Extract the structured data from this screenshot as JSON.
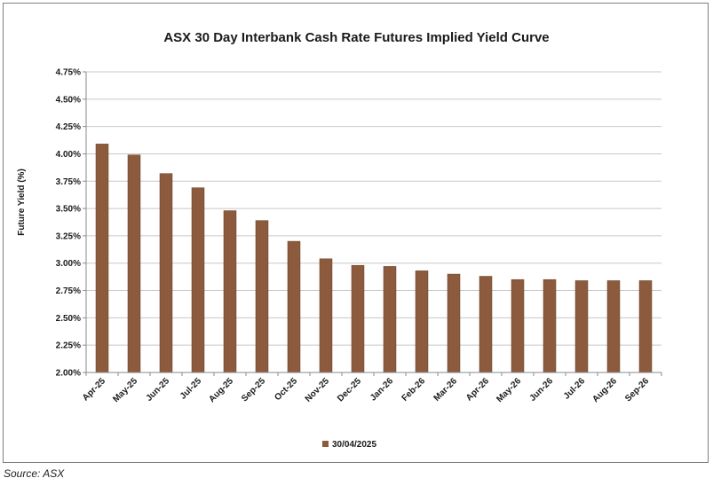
{
  "source": "Source: ASX",
  "chart_data": {
    "type": "bar",
    "title": "ASX 30 Day Interbank Cash Rate Futures Implied Yield Curve",
    "xlabel": "",
    "ylabel": "Future Yield (%)",
    "ylim": [
      2.0,
      4.75
    ],
    "yticks": [
      "2.00%",
      "2.25%",
      "2.50%",
      "2.75%",
      "3.00%",
      "3.25%",
      "3.50%",
      "3.75%",
      "4.00%",
      "4.25%",
      "4.50%",
      "4.75%"
    ],
    "categories": [
      "Apr-25",
      "May-25",
      "Jun-25",
      "Jul-25",
      "Aug-25",
      "Sep-25",
      "Oct-25",
      "Nov-25",
      "Dec-25",
      "Jan-26",
      "Feb-26",
      "Mar-26",
      "Apr-26",
      "May-26",
      "Jun-26",
      "Jul-26",
      "Aug-26",
      "Sep-26"
    ],
    "series": [
      {
        "name": "30/04/2025",
        "color": "#8c5a3c",
        "values": [
          4.09,
          3.99,
          3.82,
          3.69,
          3.48,
          3.39,
          3.2,
          3.04,
          2.98,
          2.97,
          2.93,
          2.9,
          2.88,
          2.85,
          2.85,
          2.84,
          2.84,
          2.84
        ]
      }
    ],
    "grid": true,
    "legend_position": "bottom"
  }
}
